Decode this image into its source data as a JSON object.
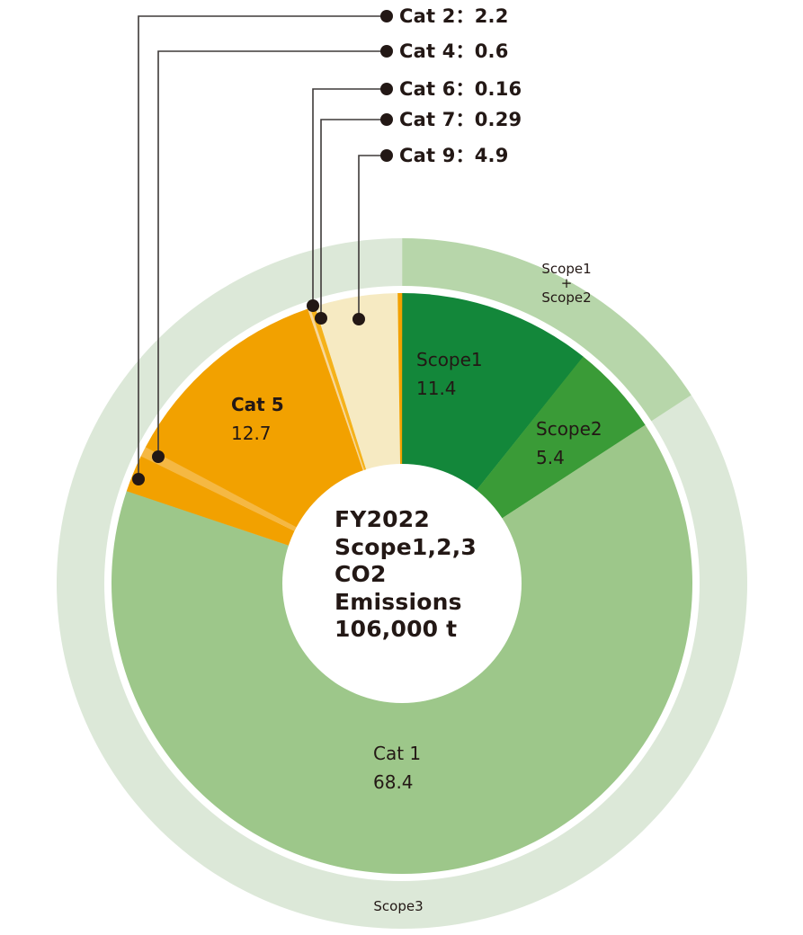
{
  "chart_data": {
    "type": "pie",
    "subtype": "nested-donut",
    "title": "FY2022 Scope1,2,3 CO2 Emissions 106,000 t",
    "unit": "thousand t (approx.)",
    "center": {
      "lines": [
        "FY2022",
        "Scope1,2,3",
        "CO2",
        "Emissions",
        "106,000 t"
      ]
    },
    "inner_ring": [
      {
        "name": "Scope1",
        "value": 11.4,
        "color": "#13873A",
        "label": "Scope1",
        "value_label": "11.4"
      },
      {
        "name": "Scope2",
        "value": 5.4,
        "color": "#3A9B37",
        "label": "Scope2",
        "value_label": "5.4"
      },
      {
        "name": "Cat 1",
        "value": 68.4,
        "color": "#9DC78A",
        "label": "Cat 1",
        "value_label": "68.4"
      },
      {
        "name": "Cat 2",
        "value": 2.2,
        "color": "#F2A100",
        "callout": "Cat 2：2.2"
      },
      {
        "name": "Cat 4",
        "value": 0.6,
        "color": "#F5B843",
        "callout": "Cat 4：0.6"
      },
      {
        "name": "Cat 5",
        "value": 12.7,
        "color": "#F2A100",
        "label": "Cat 5",
        "value_label": "12.7"
      },
      {
        "name": "Cat 6",
        "value": 0.16,
        "color": "#F7D79A",
        "callout": "Cat 6：0.16"
      },
      {
        "name": "Cat 7",
        "value": 0.29,
        "color": "#F5B21A",
        "callout": "Cat 7：0.29"
      },
      {
        "name": "Cat 9",
        "value": 4.9,
        "color": "#F6EAC2",
        "callout": "Cat 9：4.9"
      },
      {
        "name": "",
        "value": 0.25,
        "color": "#F2A100"
      }
    ],
    "outer_ring": [
      {
        "name": "Scope1 + Scope2",
        "value": 16.8,
        "color": "#B7D6AA",
        "label_lines": [
          "Scope1",
          "+",
          "Scope2"
        ]
      },
      {
        "name": "Scope3",
        "value": 89.45,
        "color": "#DCE8D8",
        "label_lines": [
          "Scope3"
        ]
      }
    ],
    "legend": "none (callouts)"
  },
  "labels": {
    "callouts": [
      {
        "text": "Cat 2：2.2"
      },
      {
        "text": "Cat 4：0.6"
      },
      {
        "text": "Cat 6：0.16"
      },
      {
        "text": "Cat 7：0.29"
      },
      {
        "text": "Cat 9：4.9"
      }
    ],
    "slices": {
      "scope1": {
        "name": "Scope1",
        "value": "11.4"
      },
      "scope2": {
        "name": "Scope2",
        "value": "5.4"
      },
      "cat1": {
        "name": "Cat 1",
        "value": "68.4"
      },
      "cat5": {
        "name": "Cat 5",
        "value": "12.7"
      }
    },
    "ring": {
      "scope12": {
        "l1": "Scope1",
        "l2": "+",
        "l3": "Scope2"
      },
      "scope3": "Scope3"
    },
    "center": {
      "l1": "FY2022",
      "l2": "Scope1,2,3",
      "l3": "CO2",
      "l4": "Emissions",
      "l5": "106,000 t"
    }
  },
  "colors": {
    "line": "#3E3A39",
    "dot": "#231815",
    "gap": "#ffffff"
  }
}
